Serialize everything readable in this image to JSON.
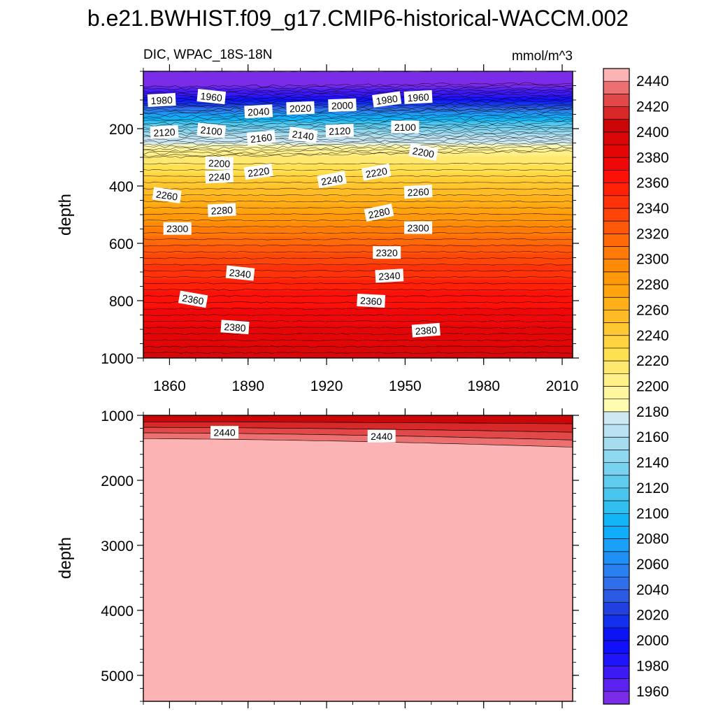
{
  "chart_data": {
    "type": "contour",
    "title": "b.e21.BWHIST.f09_g17.CMIP6-historical-WACCM.002",
    "subtitle_left": "DIC, WPAC_18S-18N",
    "units": "mmol/m^3",
    "xlabel": "",
    "ylabel": "depth",
    "x_range": [
      1850,
      2014
    ],
    "x_ticks": [
      "1860",
      "1890",
      "1920",
      "1950",
      "1980",
      "2010"
    ],
    "top_panel": {
      "ylim": [
        0,
        1000
      ],
      "y_ticks": [
        "200",
        "400",
        "600",
        "800",
        "1000"
      ],
      "contour_labels": [
        {
          "text": "1980",
          "year": 1857,
          "depth": 100,
          "angle": -3
        },
        {
          "text": "1960",
          "year": 1876,
          "depth": 88,
          "angle": 6
        },
        {
          "text": "2040",
          "year": 1894,
          "depth": 140,
          "angle": -3
        },
        {
          "text": "2020",
          "year": 1910,
          "depth": 128,
          "angle": -2
        },
        {
          "text": "2000",
          "year": 1926,
          "depth": 118,
          "angle": -2
        },
        {
          "text": "1980",
          "year": 1943,
          "depth": 98,
          "angle": -8
        },
        {
          "text": "1960",
          "year": 1955,
          "depth": 90,
          "angle": -3
        },
        {
          "text": "2120",
          "year": 1858,
          "depth": 212,
          "angle": -3
        },
        {
          "text": "2100",
          "year": 1876,
          "depth": 206,
          "angle": 6
        },
        {
          "text": "2160",
          "year": 1895,
          "depth": 232,
          "angle": -6
        },
        {
          "text": "2140",
          "year": 1911,
          "depth": 222,
          "angle": 8
        },
        {
          "text": "2120",
          "year": 1925,
          "depth": 207,
          "angle": -2
        },
        {
          "text": "2100",
          "year": 1950,
          "depth": 194,
          "angle": 0
        },
        {
          "text": "2200",
          "year": 1879,
          "depth": 320,
          "angle": 2
        },
        {
          "text": "2220",
          "year": 1894,
          "depth": 350,
          "angle": -8
        },
        {
          "text": "2240",
          "year": 1879,
          "depth": 367,
          "angle": -3
        },
        {
          "text": "2240",
          "year": 1922,
          "depth": 378,
          "angle": -10
        },
        {
          "text": "2220",
          "year": 1939,
          "depth": 352,
          "angle": -10
        },
        {
          "text": "2200",
          "year": 1957,
          "depth": 282,
          "angle": 10
        },
        {
          "text": "2260",
          "year": 1859,
          "depth": 432,
          "angle": 8
        },
        {
          "text": "2260",
          "year": 1955,
          "depth": 420,
          "angle": -3
        },
        {
          "text": "2280",
          "year": 1880,
          "depth": 484,
          "angle": -3
        },
        {
          "text": "2280",
          "year": 1940,
          "depth": 493,
          "angle": -12
        },
        {
          "text": "2300",
          "year": 1863,
          "depth": 548,
          "angle": 0
        },
        {
          "text": "2300",
          "year": 1955,
          "depth": 545,
          "angle": 0
        },
        {
          "text": "2320",
          "year": 1943,
          "depth": 632,
          "angle": 0
        },
        {
          "text": "2340",
          "year": 1887,
          "depth": 704,
          "angle": 6
        },
        {
          "text": "2340",
          "year": 1944,
          "depth": 713,
          "angle": -3
        },
        {
          "text": "2360",
          "year": 1869,
          "depth": 795,
          "angle": 10
        },
        {
          "text": "2360",
          "year": 1937,
          "depth": 800,
          "angle": 3
        },
        {
          "text": "2380",
          "year": 1885,
          "depth": 892,
          "angle": 4
        },
        {
          "text": "2380",
          "year": 1958,
          "depth": 903,
          "angle": -4
        }
      ]
    },
    "bottom_panel": {
      "ylim": [
        1000,
        5400
      ],
      "y_ticks": [
        "1000",
        "2000",
        "3000",
        "4000",
        "5000"
      ],
      "contour_labels": [
        {
          "text": "2440",
          "year": 1881,
          "depth": 1260,
          "angle": 0
        },
        {
          "text": "2440",
          "year": 1941,
          "depth": 1320,
          "angle": 0
        }
      ]
    },
    "colorbar": {
      "levels": [
        1950,
        1960,
        1970,
        1980,
        1990,
        2000,
        2010,
        2020,
        2030,
        2040,
        2050,
        2060,
        2070,
        2080,
        2090,
        2100,
        2110,
        2120,
        2130,
        2140,
        2150,
        2160,
        2170,
        2180,
        2190,
        2200,
        2210,
        2220,
        2230,
        2240,
        2250,
        2260,
        2270,
        2280,
        2290,
        2300,
        2310,
        2320,
        2330,
        2340,
        2350,
        2360,
        2370,
        2380,
        2390,
        2400,
        2410,
        2420,
        2430,
        2440,
        2450
      ],
      "tick_labels": [
        "1960",
        "1980",
        "2000",
        "2020",
        "2040",
        "2060",
        "2080",
        "2100",
        "2120",
        "2140",
        "2160",
        "2180",
        "2200",
        "2220",
        "2240",
        "2260",
        "2280",
        "2300",
        "2320",
        "2340",
        "2360",
        "2380",
        "2400",
        "2420",
        "2440"
      ],
      "colors": [
        "#7a2ce8",
        "#5c22f0",
        "#3d1af5",
        "#2014f8",
        "#1010fb",
        "#0a14f5",
        "#1230ee",
        "#2040e0",
        "#2c5ae2",
        "#2f70ea",
        "#2a80f0",
        "#2090f5",
        "#1aa0f8",
        "#10aefa",
        "#10b6f5",
        "#30c0f0",
        "#4ac6ee",
        "#60ccf0",
        "#78d2f0",
        "#90d8f0",
        "#a6dcf0",
        "#bbe2f2",
        "#cde8f2",
        "#fffcb0",
        "#fff4a0",
        "#fff088",
        "#ffe870",
        "#ffe050",
        "#ffd440",
        "#ffc830",
        "#ffbc24",
        "#ffb018",
        "#ffa40e",
        "#ff980a",
        "#ff8a08",
        "#ff7a06",
        "#ff6a08",
        "#ff5808",
        "#ff4608",
        "#ff3208",
        "#ff2008",
        "#fc1008",
        "#f00808",
        "#e40606",
        "#d80606",
        "#cc0606",
        "#d82828",
        "#e24848",
        "#ec7070",
        "#fbb3b3"
      ]
    }
  }
}
